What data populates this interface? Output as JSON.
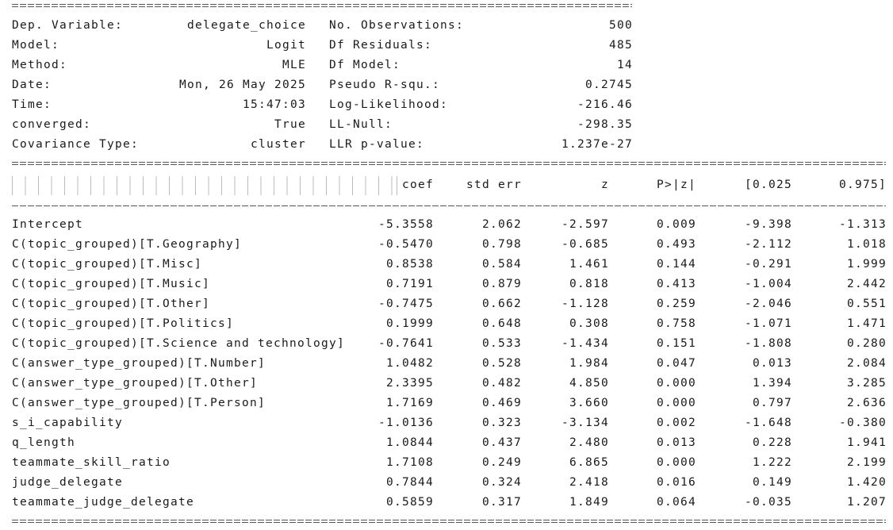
{
  "summary": {
    "left": [
      {
        "label": "Dep. Variable:",
        "value": "delegate_choice"
      },
      {
        "label": "Model:",
        "value": "Logit"
      },
      {
        "label": "Method:",
        "value": "MLE"
      },
      {
        "label": "Date:",
        "value": "Mon, 26 May 2025"
      },
      {
        "label": "Time:",
        "value": "15:47:03"
      },
      {
        "label": "converged:",
        "value": "True"
      },
      {
        "label": "Covariance Type:",
        "value": "cluster"
      }
    ],
    "right": [
      {
        "label": "No. Observations:",
        "value": "500"
      },
      {
        "label": "Df Residuals:",
        "value": "485"
      },
      {
        "label": "Df Model:",
        "value": "14"
      },
      {
        "label": "Pseudo R-squ.:",
        "value": "0.2745"
      },
      {
        "label": "Log-Likelihood:",
        "value": "-216.46"
      },
      {
        "label": "LL-Null:",
        "value": "-298.35"
      },
      {
        "label": "LLR p-value:",
        "value": "1.237e-27"
      }
    ]
  },
  "coef_table": {
    "headers": [
      "coef",
      "std err",
      "z",
      "P>|z|",
      "[0.025",
      "0.975]"
    ],
    "rows": [
      {
        "name": "Intercept",
        "values": [
          "-5.3558",
          "2.062",
          "-2.597",
          "0.009",
          "-9.398",
          "-1.313"
        ]
      },
      {
        "name": "C(topic_grouped)[T.Geography]",
        "values": [
          "-0.5470",
          "0.798",
          "-0.685",
          "0.493",
          "-2.112",
          "1.018"
        ]
      },
      {
        "name": "C(topic_grouped)[T.Misc]",
        "values": [
          "0.8538",
          "0.584",
          "1.461",
          "0.144",
          "-0.291",
          "1.999"
        ]
      },
      {
        "name": "C(topic_grouped)[T.Music]",
        "values": [
          "0.7191",
          "0.879",
          "0.818",
          "0.413",
          "-1.004",
          "2.442"
        ]
      },
      {
        "name": "C(topic_grouped)[T.Other]",
        "values": [
          "-0.7475",
          "0.662",
          "-1.128",
          "0.259",
          "-2.046",
          "0.551"
        ]
      },
      {
        "name": "C(topic_grouped)[T.Politics]",
        "values": [
          "0.1999",
          "0.648",
          "0.308",
          "0.758",
          "-1.071",
          "1.471"
        ]
      },
      {
        "name": "C(topic_grouped)[T.Science and technology]",
        "values": [
          "-0.7641",
          "0.533",
          "-1.434",
          "0.151",
          "-1.808",
          "0.280"
        ]
      },
      {
        "name": "C(answer_type_grouped)[T.Number]",
        "values": [
          "1.0482",
          "0.528",
          "1.984",
          "0.047",
          "0.013",
          "2.084"
        ]
      },
      {
        "name": "C(answer_type_grouped)[T.Other]",
        "values": [
          "2.3395",
          "0.482",
          "4.850",
          "0.000",
          "1.394",
          "3.285"
        ]
      },
      {
        "name": "C(answer_type_grouped)[T.Person]",
        "values": [
          "1.7169",
          "0.469",
          "3.660",
          "0.000",
          "0.797",
          "2.636"
        ]
      },
      {
        "name": "s_i_capability",
        "values": [
          "-1.0136",
          "0.323",
          "-3.134",
          "0.002",
          "-1.648",
          "-0.380"
        ]
      },
      {
        "name": "q_length",
        "values": [
          "1.0844",
          "0.437",
          "2.480",
          "0.013",
          "0.228",
          "1.941"
        ]
      },
      {
        "name": "teammate_skill_ratio",
        "values": [
          "1.7108",
          "0.249",
          "6.865",
          "0.000",
          "1.222",
          "2.199"
        ]
      },
      {
        "name": "judge_delegate",
        "values": [
          "0.7844",
          "0.324",
          "2.418",
          "0.016",
          "0.149",
          "1.420"
        ]
      },
      {
        "name": "teammate_judge_delegate",
        "values": [
          "0.5859",
          "0.317",
          "1.849",
          "0.064",
          "-0.035",
          "1.207"
        ]
      }
    ]
  }
}
